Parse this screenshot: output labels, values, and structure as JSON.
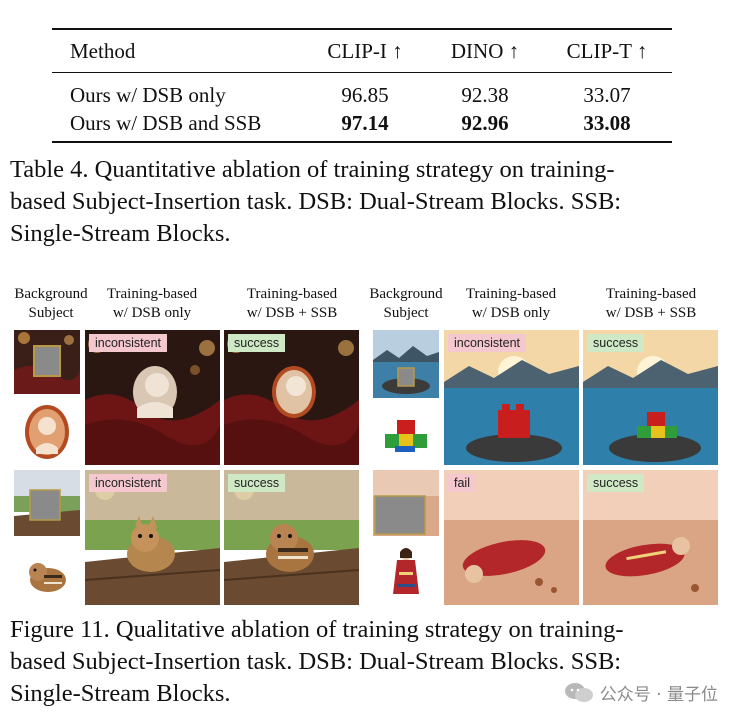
{
  "table": {
    "headers": [
      "Method",
      "CLIP-I ↑",
      "DINO ↑",
      "CLIP-T ↑"
    ],
    "rows": [
      {
        "method": "Ours w/ DSB only",
        "clip_i": "96.85",
        "dino": "92.38",
        "clip_t": "33.07"
      },
      {
        "method": "Ours w/ DSB and SSB",
        "clip_i": "97.14",
        "dino": "92.96",
        "clip_t": "33.08"
      }
    ],
    "caption_line1": "Table 4.  Quantitative ablation of training strategy on training-",
    "caption_line2": "based Subject-Insertion task.  DSB: Dual-Stream Blocks.  SSB:",
    "caption_line3": "Single-Stream Blocks."
  },
  "figure": {
    "col_headers": {
      "background_subject_line1": "Background",
      "background_subject_line2": "Subject",
      "dsb_only_line1": "Training-based",
      "dsb_only_line2": "w/ DSB only",
      "dsb_ssb_line1": "Training-based",
      "dsb_ssb_line2": "w/ DSB + SSB"
    },
    "tags": {
      "inconsistent": "inconsistent",
      "success": "success",
      "fail": "fail"
    },
    "caption_line1": "Figure 11.  Qualitative ablation of training strategy on training-",
    "caption_line2": "based Subject-Insertion task.  DSB: Dual-Stream Blocks.  SSB:",
    "caption_line3": "Single-Stream Blocks."
  },
  "watermark": "公众号 · 量子位",
  "colors": {
    "bad_tag": "#f5c7cf",
    "good_tag": "#cfe9c6"
  }
}
